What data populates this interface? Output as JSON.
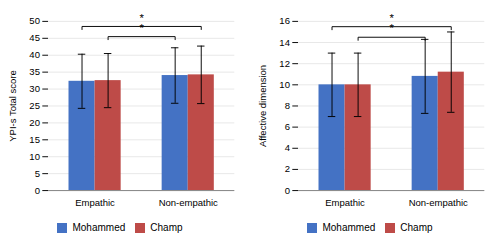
{
  "chart_data": [
    {
      "type": "bar",
      "ylabel": "YPI-s Total score",
      "categories": [
        "Empathic",
        "Non-empathic"
      ],
      "series": [
        {
          "name": "Mohammed",
          "color": "#4472C4",
          "values": [
            32.3,
            34.0
          ],
          "errors": [
            8.0,
            8.2
          ]
        },
        {
          "name": "Champ",
          "color": "#BE4B48",
          "values": [
            32.5,
            34.2
          ],
          "errors": [
            8.0,
            8.5
          ]
        }
      ],
      "ylim": [
        0,
        50
      ],
      "yticks": [
        0,
        5,
        10,
        15,
        20,
        25,
        30,
        35,
        40,
        45,
        50
      ],
      "grid": true,
      "legend": "bottom",
      "annotations": [
        {
          "text": "*",
          "y": 48.5,
          "from": {
            "category": "Empathic",
            "series": "Mohammed"
          },
          "to": {
            "category": "Non-empathic",
            "series": "Champ"
          }
        },
        {
          "text": "*",
          "y": 45.5,
          "from": {
            "category": "Empathic",
            "series": "Champ"
          },
          "to": {
            "category": "Non-empathic",
            "series": "Mohammed"
          }
        }
      ]
    },
    {
      "type": "bar",
      "ylabel": "Affective dimension",
      "categories": [
        "Empathic",
        "Non-empathic"
      ],
      "series": [
        {
          "name": "Mohammed",
          "color": "#4472C4",
          "values": [
            10.0,
            10.8
          ],
          "errors": [
            3.0,
            3.5
          ]
        },
        {
          "name": "Champ",
          "color": "#BE4B48",
          "values": [
            10.0,
            11.2
          ],
          "errors": [
            3.0,
            3.8
          ]
        }
      ],
      "ylim": [
        0,
        16
      ],
      "yticks": [
        0,
        2,
        4,
        6,
        8,
        10,
        12,
        14,
        16
      ],
      "grid": true,
      "legend": "bottom",
      "annotations": [
        {
          "text": "*",
          "y": 15.5,
          "from": {
            "category": "Empathic",
            "series": "Mohammed"
          },
          "to": {
            "category": "Non-empathic",
            "series": "Champ"
          }
        },
        {
          "text": "*",
          "y": 14.5,
          "from": {
            "category": "Empathic",
            "series": "Champ"
          },
          "to": {
            "category": "Non-empathic",
            "series": "Mohammed"
          }
        }
      ]
    }
  ]
}
